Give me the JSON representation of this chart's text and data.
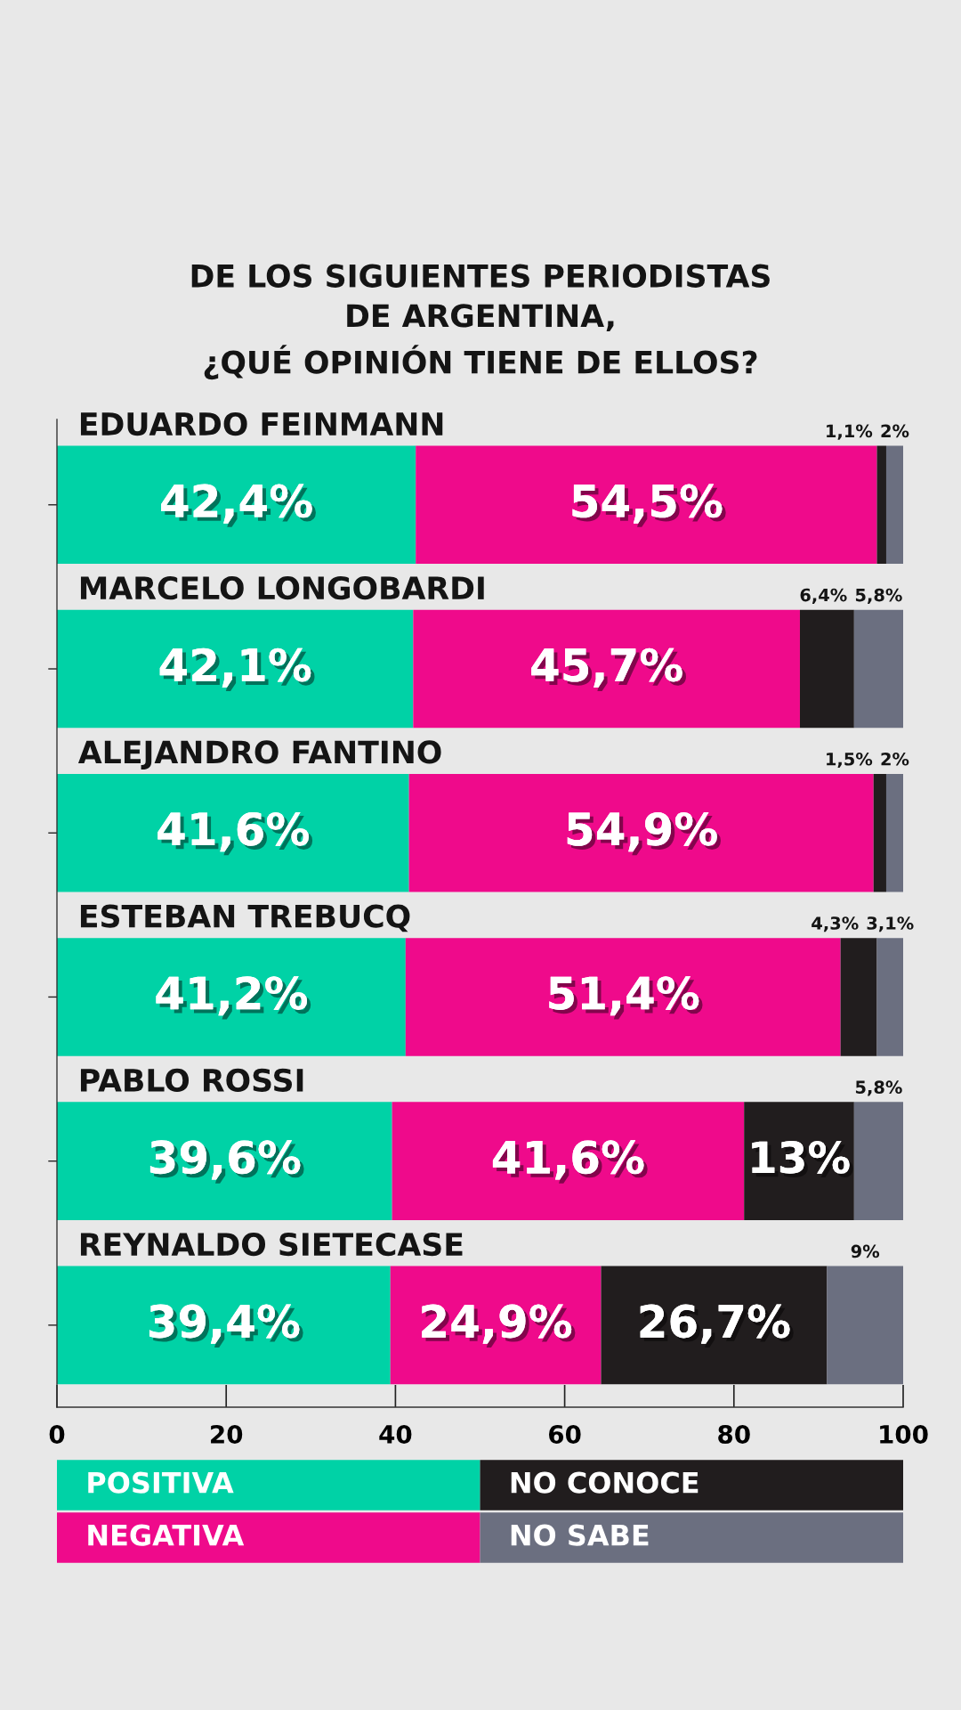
{
  "chart_data": {
    "type": "bar",
    "orientation": "horizontal",
    "stacked": true,
    "title": "DE LOS SIGUIENTES PERIODISTAS\nDE ARGENTINA,\n¿QUÉ OPINIÓN TIENE DE ELLOS?",
    "categories": [
      "EDUARDO FEINMANN",
      "MARCELO LONGOBARDI",
      "ALEJANDRO FANTINO",
      "ESTEBAN TREBUCQ",
      "PABLO ROSSI",
      "REYNALDO SIETECASE"
    ],
    "series": [
      {
        "name": "POSITIVA",
        "color": "#00d2a6",
        "values": [
          42.4,
          42.1,
          41.6,
          41.2,
          39.6,
          39.4
        ],
        "value_labels": [
          "42,4%",
          "42,1%",
          "41,6%",
          "41,2%",
          "39,6%",
          "39,4%"
        ]
      },
      {
        "name": "NEGATIVA",
        "color": "#ef0a8b",
        "values": [
          54.5,
          45.7,
          54.9,
          51.4,
          41.6,
          24.9
        ],
        "value_labels": [
          "54,5%",
          "45,7%",
          "54,9%",
          "51,4%",
          "41,6%",
          "24,9%"
        ]
      },
      {
        "name": "NO CONOCE",
        "color": "#211d1e",
        "values": [
          1.1,
          6.4,
          1.5,
          4.3,
          13,
          26.7
        ],
        "value_labels": [
          "1,1%",
          "6,4%",
          "1,5%",
          "4,3%",
          "13%",
          "26,7%"
        ]
      },
      {
        "name": "NO SABE",
        "color": "#6b6f80",
        "values": [
          2,
          5.8,
          2,
          3.1,
          5.8,
          9
        ],
        "value_labels": [
          "2%",
          "5,8%",
          "2%",
          "3,1%",
          "5,8%",
          "9%"
        ]
      }
    ],
    "xlim": [
      0,
      100
    ],
    "xticks": [
      0,
      20,
      40,
      60,
      80,
      100
    ],
    "legend": "bottom"
  }
}
